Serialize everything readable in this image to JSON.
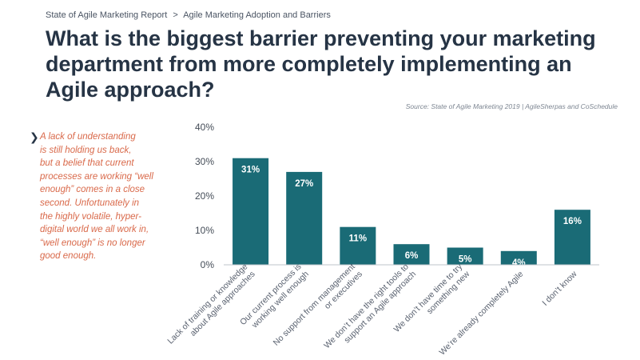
{
  "breadcrumb": {
    "report": "State of Agile Marketing Report",
    "separator": ">",
    "section": "Agile Marketing Adoption and Barriers"
  },
  "title": "What is the biggest barrier preventing your marketing department from more completely implementing an Agile approach?",
  "source": "Source: State of Agile Marketing 2019 | AgileSherpas and CoSchedule",
  "callout": {
    "icon": "chevron-right-icon",
    "text": "A lack of understanding\nis still holding us back,\nbut a belief that current\nprocesses are working “well\nenough” comes in a close\nsecond. Unfortunately in\nthe highly volatile, hyper-\ndigital world we all work in,\n“well enough” is no longer\ngood enough."
  },
  "colors": {
    "bar": "#1a6b76",
    "callout_text": "#d9694a",
    "title": "#263445"
  },
  "chart_data": {
    "type": "bar",
    "categories": [
      [
        "Lack of training or knowledge",
        "about Agile approaches"
      ],
      [
        "Our current process is",
        "working well enough"
      ],
      [
        "No support from management",
        "or executives"
      ],
      [
        "We don’t have the right tools to",
        "support an Agile approach"
      ],
      [
        "We don’t have time to try",
        "something new"
      ],
      [
        "We’re already completely Agile"
      ],
      [
        "I don’t know"
      ]
    ],
    "values": [
      31,
      27,
      11,
      6,
      5,
      4,
      16
    ],
    "value_labels": [
      "31%",
      "27%",
      "11%",
      "6%",
      "5%",
      "4%",
      "16%"
    ],
    "y_ticks": [
      0,
      10,
      20,
      30,
      40
    ],
    "y_tick_labels": [
      "0%",
      "10%",
      "20%",
      "30%",
      "40%"
    ],
    "ylim": [
      0,
      40
    ],
    "grid": false,
    "legend": "none",
    "title": "",
    "xlabel": "",
    "ylabel": ""
  }
}
